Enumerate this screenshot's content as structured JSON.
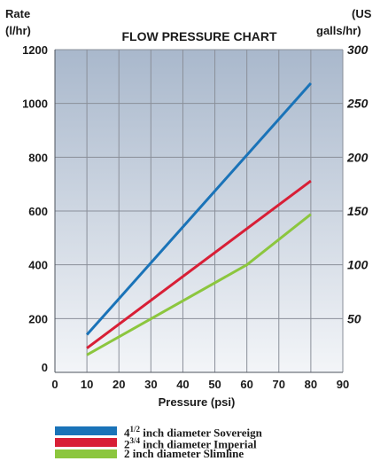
{
  "chart_data": {
    "type": "line",
    "title": "FLOW PRESSURE CHART",
    "y_left_label": [
      "Rate",
      "(l/hr)"
    ],
    "y_right_label": [
      "(US",
      "galls/hr)"
    ],
    "xlabel": "Pressure (psi)",
    "xlim": [
      0,
      90
    ],
    "ylim": [
      0,
      1200
    ],
    "x_ticks": [
      0,
      10,
      20,
      30,
      40,
      50,
      60,
      70,
      80,
      90
    ],
    "y_ticks_left": [
      0,
      200,
      400,
      600,
      800,
      1000,
      1200
    ],
    "y_ticks_right": [
      50,
      100,
      150,
      200,
      250,
      300
    ],
    "y_right_lim": [
      0,
      300
    ],
    "grid": true,
    "legend_position": "bottom",
    "series": [
      {
        "name": "4½ inch diameter Sovereign",
        "name_main": "4",
        "name_frac": "1/2",
        "name_rest": " inch diameter Sovereign",
        "color": "#1a73b8",
        "x": [
          10,
          80
        ],
        "y": [
          140,
          1075
        ]
      },
      {
        "name": "2¾ inch diameter Imperial",
        "name_main": "2",
        "name_frac": "3/4",
        "name_rest": " inch diameter Imperial",
        "color": "#d81f36",
        "x": [
          10,
          80
        ],
        "y": [
          90,
          712
        ]
      },
      {
        "name": "2 inch diameter Slimline",
        "name_main": "2",
        "name_frac": "",
        "name_rest": " inch diameter Slimline",
        "color": "#8cc63e",
        "x": [
          10,
          60,
          80
        ],
        "y": [
          65,
          400,
          588
        ]
      }
    ]
  }
}
